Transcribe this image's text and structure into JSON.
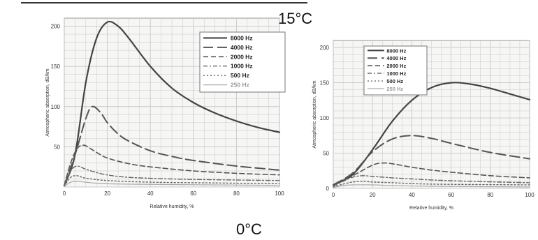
{
  "labels": {
    "top": "15°C",
    "bottom": "0°C"
  },
  "colors": {
    "curve": "#555555",
    "grid": "#c8c8c8",
    "axis": "#666666",
    "text": "#333333"
  },
  "chart_data": [
    {
      "type": "line",
      "title": "",
      "xlabel": "Relative humidity, %",
      "ylabel": "Atmospheric absorption, dB/km",
      "xlim": [
        0,
        100
      ],
      "ylim": [
        0,
        210
      ],
      "xticks": [
        0,
        20,
        40,
        60,
        80,
        100
      ],
      "yticks": [
        50,
        100,
        150,
        200
      ],
      "grid": true,
      "legend_position": "top-right",
      "series": [
        {
          "name": "8000  Hz",
          "style": "solid",
          "x": [
            0,
            5,
            10,
            15,
            20,
            25,
            30,
            40,
            50,
            60,
            70,
            80,
            90,
            100
          ],
          "y": [
            2,
            40,
            130,
            185,
            205,
            200,
            185,
            150,
            123,
            105,
            92,
            82,
            74,
            68
          ]
        },
        {
          "name": "4000  Hz",
          "style": "longdash",
          "x": [
            0,
            5,
            10,
            13,
            17,
            20,
            25,
            30,
            40,
            50,
            60,
            80,
            100
          ],
          "y": [
            2,
            40,
            85,
            100,
            92,
            80,
            66,
            57,
            45,
            38,
            33,
            26,
            21
          ]
        },
        {
          "name": "2000  Hz",
          "style": "dash",
          "x": [
            0,
            3,
            6,
            9,
            12,
            15,
            20,
            30,
            40,
            60,
            80,
            100
          ],
          "y": [
            2,
            30,
            48,
            52,
            48,
            43,
            36,
            29,
            25,
            20,
            17,
            15
          ]
        },
        {
          "name": "1000  Hz",
          "style": "dashdot",
          "x": [
            0,
            3,
            6,
            10,
            15,
            20,
            30,
            50,
            70,
            100
          ],
          "y": [
            1,
            20,
            26,
            22,
            18,
            15,
            12,
            10,
            9,
            8
          ]
        },
        {
          "name": "500   Hz",
          "style": "dot",
          "x": [
            0,
            3,
            6,
            10,
            20,
            40,
            70,
            100
          ],
          "y": [
            1,
            12,
            14,
            11,
            8,
            6,
            5,
            4
          ]
        },
        {
          "name": "250   Hz",
          "style": "light",
          "x": [
            0,
            3,
            6,
            10,
            20,
            50,
            100
          ],
          "y": [
            0.5,
            6,
            7,
            6,
            4,
            3,
            2
          ]
        }
      ]
    },
    {
      "type": "line",
      "title": "",
      "xlabel": "Relative humidity, %",
      "ylabel": "Atmospheric absorption, dB/km",
      "xlim": [
        0,
        100
      ],
      "ylim": [
        0,
        210
      ],
      "xticks": [
        0,
        20,
        40,
        60,
        80,
        100
      ],
      "yticks": [
        0,
        50,
        100,
        150,
        200
      ],
      "grid": true,
      "legend_position": "top-left",
      "series": [
        {
          "name": "8000  Hz",
          "style": "solid",
          "x": [
            0,
            10,
            20,
            30,
            40,
            50,
            60,
            70,
            80,
            90,
            100
          ],
          "y": [
            5,
            20,
            55,
            95,
            125,
            143,
            150,
            148,
            142,
            134,
            126
          ]
        },
        {
          "name": "4000  Hz",
          "style": "longdash",
          "x": [
            0,
            10,
            20,
            30,
            40,
            50,
            60,
            80,
            100
          ],
          "y": [
            5,
            22,
            52,
            70,
            75,
            71,
            64,
            51,
            42
          ]
        },
        {
          "name": "2000  Hz",
          "style": "dash",
          "x": [
            0,
            10,
            20,
            25,
            30,
            40,
            50,
            60,
            80,
            100
          ],
          "y": [
            4,
            18,
            33,
            36,
            35,
            30,
            26,
            23,
            18,
            15
          ]
        },
        {
          "name": "1000  Hz",
          "style": "dashdot",
          "x": [
            0,
            5,
            10,
            15,
            20,
            30,
            50,
            70,
            100
          ],
          "y": [
            3,
            10,
            16,
            18,
            17,
            15,
            12,
            10,
            8
          ]
        },
        {
          "name": "500   Hz",
          "style": "dot",
          "x": [
            0,
            5,
            10,
            15,
            20,
            30,
            50,
            100
          ],
          "y": [
            2,
            6,
            9,
            10,
            9,
            8,
            6,
            5
          ]
        },
        {
          "name": "250   Hz",
          "style": "light",
          "x": [
            0,
            5,
            10,
            20,
            30,
            50,
            100
          ],
          "y": [
            1,
            4,
            5,
            5,
            4,
            3,
            2
          ]
        }
      ]
    }
  ]
}
